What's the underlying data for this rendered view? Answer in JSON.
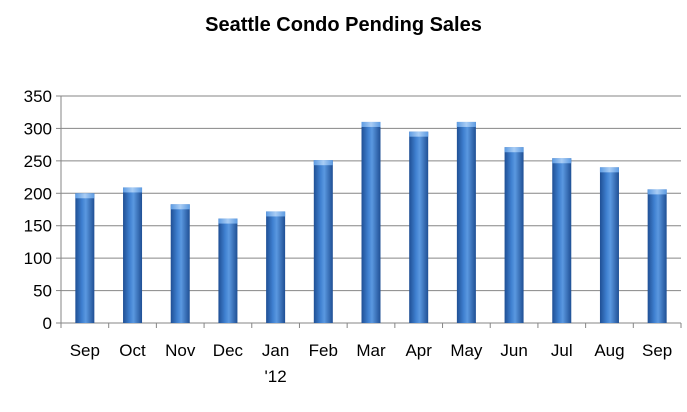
{
  "chart_data": {
    "type": "bar",
    "title": "Seattle Condo Pending Sales",
    "xlabel": "",
    "ylabel": "",
    "categories": [
      "Sep",
      "Oct",
      "Nov",
      "Dec",
      "Jan\n'12",
      "Feb",
      "Mar",
      "Apr",
      "May",
      "Jun",
      "Jul",
      "Aug",
      "Sep"
    ],
    "values": [
      200,
      209,
      183,
      161,
      172,
      251,
      310,
      295,
      310,
      271,
      254,
      240,
      206
    ],
    "ylim": [
      0,
      350
    ],
    "yticks": [
      0,
      50,
      100,
      150,
      200,
      250,
      300,
      350
    ],
    "grid": true,
    "legend": "none",
    "colors": {
      "bar": "#3a78c8",
      "bar_light": "#7fb2ee",
      "bar_dark": "#1f4f94",
      "grid": "#868686"
    }
  }
}
